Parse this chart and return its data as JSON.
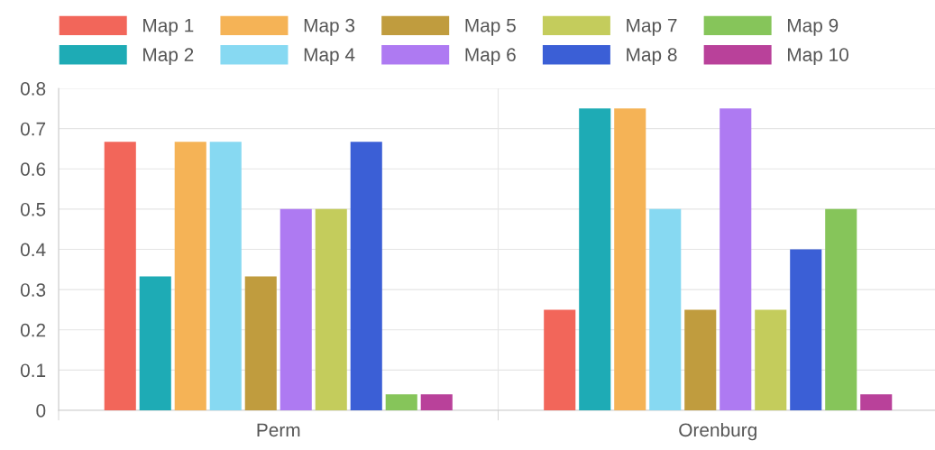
{
  "chart_data": {
    "type": "bar",
    "categories": [
      "Perm",
      "Orenburg"
    ],
    "series": [
      {
        "name": "Map 1",
        "color": "#f2665a",
        "values": [
          0.667,
          0.25
        ]
      },
      {
        "name": "Map 2",
        "color": "#1eabb5",
        "values": [
          0.333,
          0.75
        ]
      },
      {
        "name": "Map 3",
        "color": "#f5b356",
        "values": [
          0.667,
          0.75
        ]
      },
      {
        "name": "Map 4",
        "color": "#87d9f2",
        "values": [
          0.667,
          0.5
        ]
      },
      {
        "name": "Map 5",
        "color": "#c09c3e",
        "values": [
          0.333,
          0.25
        ]
      },
      {
        "name": "Map 6",
        "color": "#ae7af2",
        "values": [
          0.5,
          0.75
        ]
      },
      {
        "name": "Map 7",
        "color": "#c4cc5c",
        "values": [
          0.5,
          0.25
        ]
      },
      {
        "name": "Map 8",
        "color": "#3b5fd6",
        "values": [
          0.667,
          0.4
        ]
      },
      {
        "name": "Map 9",
        "color": "#86c55a",
        "values": [
          0.04,
          0.5
        ]
      },
      {
        "name": "Map 10",
        "color": "#b9419a",
        "values": [
          0.04,
          0.04
        ]
      }
    ],
    "ylim": [
      0,
      0.8
    ],
    "yticks": [
      0,
      0.1,
      0.2,
      0.3,
      0.4,
      0.5,
      0.6,
      0.7,
      0.8
    ],
    "grid": true,
    "legend": "top"
  }
}
